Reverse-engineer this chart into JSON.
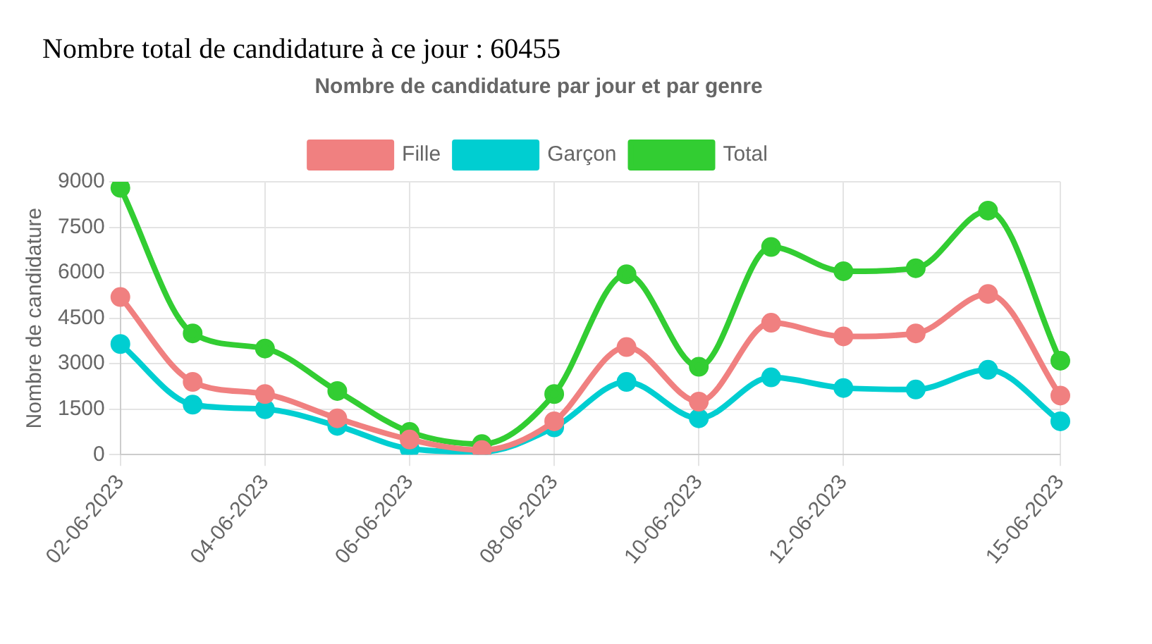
{
  "chart_data": {
    "type": "line",
    "title": "Nombre de candidature par jour et par genre",
    "annotations": [
      "Nombre total de candidature à ce jour : 60455"
    ],
    "ylabel": "Nombre de candidature",
    "categories": [
      "02-06-2023",
      null,
      "04-06-2023",
      null,
      "06-06-2023",
      null,
      "08-06-2023",
      null,
      "10-06-2023",
      null,
      "12-06-2023",
      null,
      null,
      "15-06-2023"
    ],
    "series": [
      {
        "name": "Fille",
        "color": "#f08080",
        "values": [
          5200,
          2400,
          2000,
          1200,
          500,
          150,
          1100,
          3550,
          1750,
          4350,
          3900,
          4000,
          5300,
          1950
        ]
      },
      {
        "name": "Garçon",
        "color": "#00ced1",
        "values": [
          3650,
          1650,
          1500,
          950,
          200,
          100,
          900,
          2400,
          1200,
          2550,
          2200,
          2150,
          2800,
          1100
        ]
      },
      {
        "name": "Total",
        "color": "#32cd32",
        "values": [
          8800,
          4000,
          3500,
          2100,
          750,
          350,
          2000,
          5950,
          2900,
          6850,
          6050,
          6150,
          8050,
          3100
        ]
      }
    ],
    "ylim": [
      0,
      9000
    ],
    "yticks": [
      0,
      1500,
      3000,
      4500,
      6000,
      7500,
      9000
    ],
    "grid": true,
    "legend": "top",
    "marker": "circle",
    "line_style": "solid"
  }
}
